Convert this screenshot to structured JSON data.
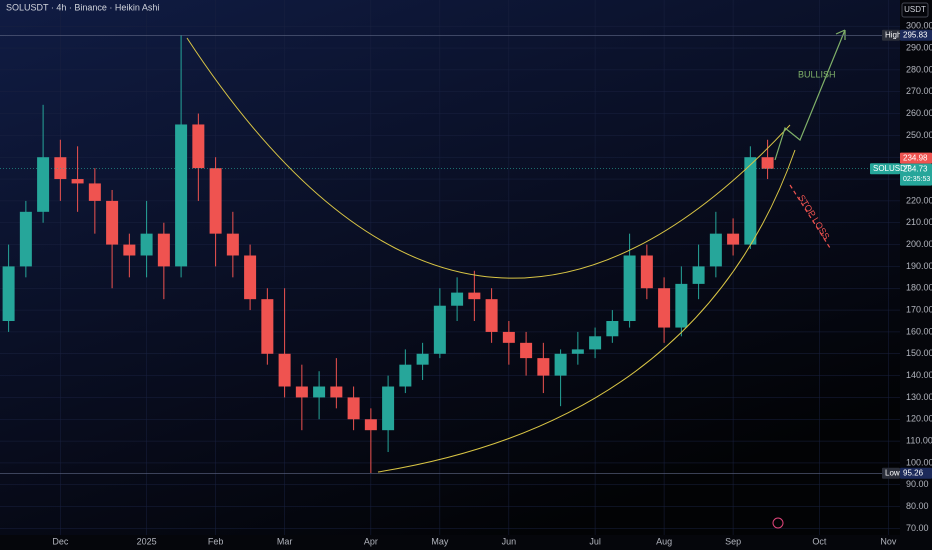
{
  "header": {
    "title": "SOLUSDT · 4h · Binance · Heikin Ashi",
    "currency": "USDT"
  },
  "chart_data": {
    "type": "candlestick",
    "categories": [
      null,
      null,
      null,
      "Dec",
      null,
      null,
      null,
      null,
      "2025",
      null,
      null,
      null,
      "Feb",
      null,
      null,
      null,
      "Mar",
      null,
      null,
      null,
      null,
      "Apr",
      null,
      null,
      null,
      "May",
      null,
      null,
      null,
      "Jun",
      null,
      null,
      null,
      null,
      "Jul",
      null,
      null,
      null,
      "Aug",
      null,
      null,
      null,
      "Sep",
      null,
      null,
      null,
      null,
      "Oct",
      null,
      null,
      null,
      "Nov",
      null,
      null
    ],
    "open": [
      165,
      190,
      215,
      240,
      230,
      228,
      220,
      200,
      195,
      205,
      190,
      255,
      235,
      205,
      195,
      175,
      150,
      135,
      130,
      135,
      130,
      120,
      115,
      135,
      145,
      150,
      172,
      178,
      175,
      160,
      155,
      148,
      140,
      150,
      152,
      158,
      165,
      195,
      180,
      162,
      182,
      190,
      205,
      200,
      240,
      null,
      null,
      null,
      null,
      null,
      null,
      null,
      null,
      null
    ],
    "high": [
      200,
      220,
      264,
      248,
      245,
      235,
      225,
      205,
      220,
      210,
      295.83,
      260,
      240,
      215,
      200,
      180,
      180,
      145,
      142,
      148,
      135,
      125,
      140,
      152,
      155,
      180,
      185,
      188,
      180,
      165,
      160,
      155,
      152,
      160,
      162,
      170,
      205,
      200,
      185,
      190,
      200,
      215,
      212,
      245,
      248,
      null,
      null,
      null,
      null,
      null,
      null,
      null,
      null,
      null
    ],
    "low": [
      160,
      185,
      210,
      220,
      215,
      205,
      180,
      185,
      185,
      175,
      185,
      220,
      190,
      185,
      170,
      145,
      130,
      115,
      120,
      125,
      115,
      95.26,
      105,
      132,
      138,
      148,
      165,
      165,
      155,
      145,
      140,
      132,
      126,
      145,
      148,
      155,
      162,
      175,
      155,
      158,
      175,
      185,
      195,
      198,
      230,
      null,
      null,
      null,
      null,
      null,
      null,
      null,
      null,
      null
    ],
    "close": [
      190,
      215,
      240,
      230,
      228,
      220,
      200,
      195,
      205,
      190,
      255,
      235,
      205,
      195,
      175,
      150,
      135,
      130,
      135,
      130,
      120,
      115,
      135,
      145,
      150,
      172,
      178,
      175,
      160,
      155,
      148,
      140,
      150,
      152,
      158,
      165,
      195,
      180,
      162,
      182,
      190,
      205,
      200,
      240,
      234.73,
      null,
      null,
      null,
      null,
      null,
      null,
      null,
      null,
      null
    ],
    "up_color": "#26a69a",
    "down_color": "#ef5350",
    "ylim": [
      67,
      312
    ],
    "yticks": [
      {
        "value": 70,
        "label": "70.00"
      },
      {
        "value": 80,
        "label": "80.00"
      },
      {
        "value": 90,
        "label": "90.00"
      },
      {
        "value": 100,
        "label": "100.00"
      },
      {
        "value": 110,
        "label": "110.00"
      },
      {
        "value": 120,
        "label": "120.00"
      },
      {
        "value": 130,
        "label": "130.00"
      },
      {
        "value": 140,
        "label": "140.00"
      },
      {
        "value": 150,
        "label": "150.00"
      },
      {
        "value": 160,
        "label": "160.00"
      },
      {
        "value": 170,
        "label": "170.00"
      },
      {
        "value": 180,
        "label": "180.00"
      },
      {
        "value": 190,
        "label": "190.00"
      },
      {
        "value": 200,
        "label": "200.00"
      },
      {
        "value": 210,
        "label": "210.00"
      },
      {
        "value": 220,
        "label": "220.00"
      },
      {
        "value": 230,
        "label": "230.00"
      },
      {
        "value": 240,
        "label": "240.00"
      },
      {
        "value": 250,
        "label": "250.00"
      },
      {
        "value": 260,
        "label": "260.00"
      },
      {
        "value": 270,
        "label": "270.00"
      },
      {
        "value": 280,
        "label": "280.00"
      },
      {
        "value": 290,
        "label": "290.00"
      },
      {
        "value": 300,
        "label": "300.00"
      }
    ],
    "grid": true,
    "high_label": "High",
    "high_value": 295.83,
    "low_label": "Low",
    "low_value": 95.26,
    "symbol_label": "SOLUSDT",
    "last_price": 234.98,
    "close_price": 234.73,
    "countdown": "02:35:53",
    "annotations": {
      "bullish": "BULLISH",
      "stop_loss": "STOP LOSS"
    }
  }
}
